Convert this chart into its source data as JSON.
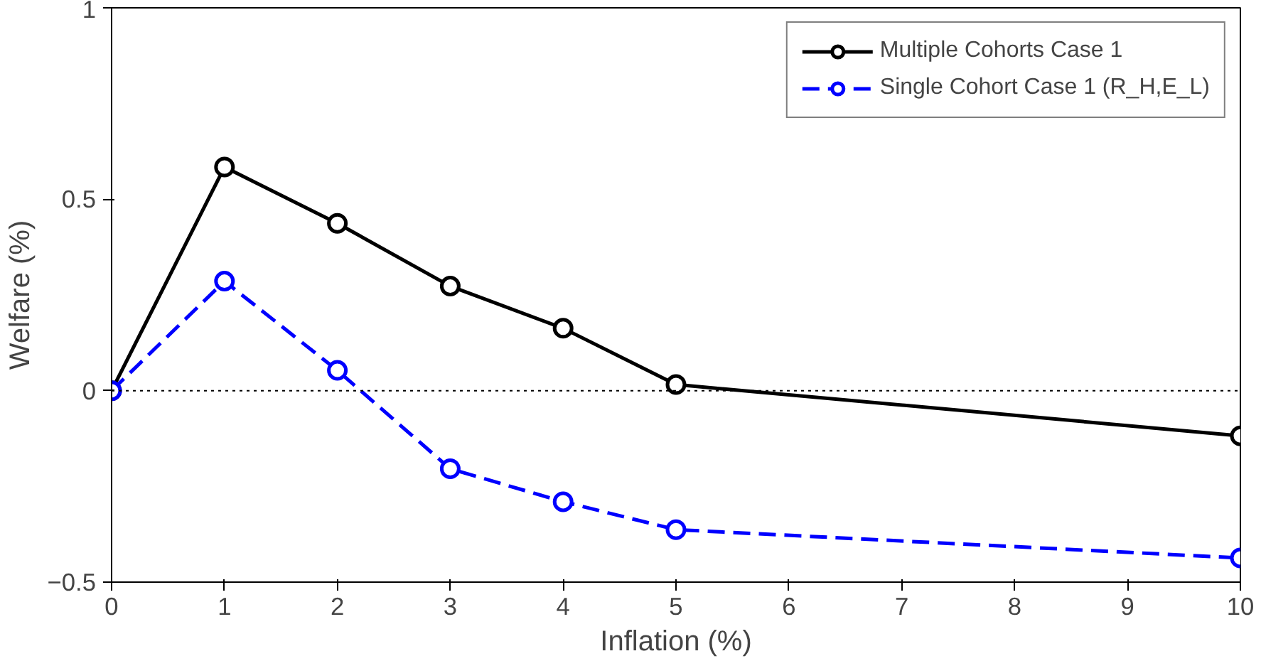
{
  "chart_data": {
    "type": "line",
    "xlabel": "Inflation (%)",
    "ylabel": "Welfare (%)",
    "x": [
      0,
      1,
      2,
      3,
      4,
      5,
      10
    ],
    "series": [
      {
        "name": "Multiple Cohorts Case 1",
        "color": "#000000",
        "line_style": "solid",
        "values": [
          0,
          0.584,
          0.437,
          0.273,
          0.163,
          0.016,
          -0.118
        ]
      },
      {
        "name": "Single Cohort Case 1 (R_H,E_L)",
        "color": "#0000ff",
        "line_style": "dashed",
        "values": [
          0,
          0.286,
          0.053,
          -0.204,
          -0.29,
          -0.363,
          -0.437
        ]
      }
    ],
    "xlim": [
      0,
      10
    ],
    "ylim": [
      -0.5,
      1
    ],
    "xticks": [
      0,
      1,
      2,
      3,
      4,
      5,
      6,
      7,
      8,
      9,
      10
    ],
    "yticks": [
      -0.5,
      0,
      0.5,
      1
    ],
    "ref_lines": [
      {
        "axis": "y",
        "value": 0,
        "color": "#000000",
        "line_style": "dotted"
      }
    ],
    "marker": "circle",
    "legend": "top right",
    "grid": false
  }
}
